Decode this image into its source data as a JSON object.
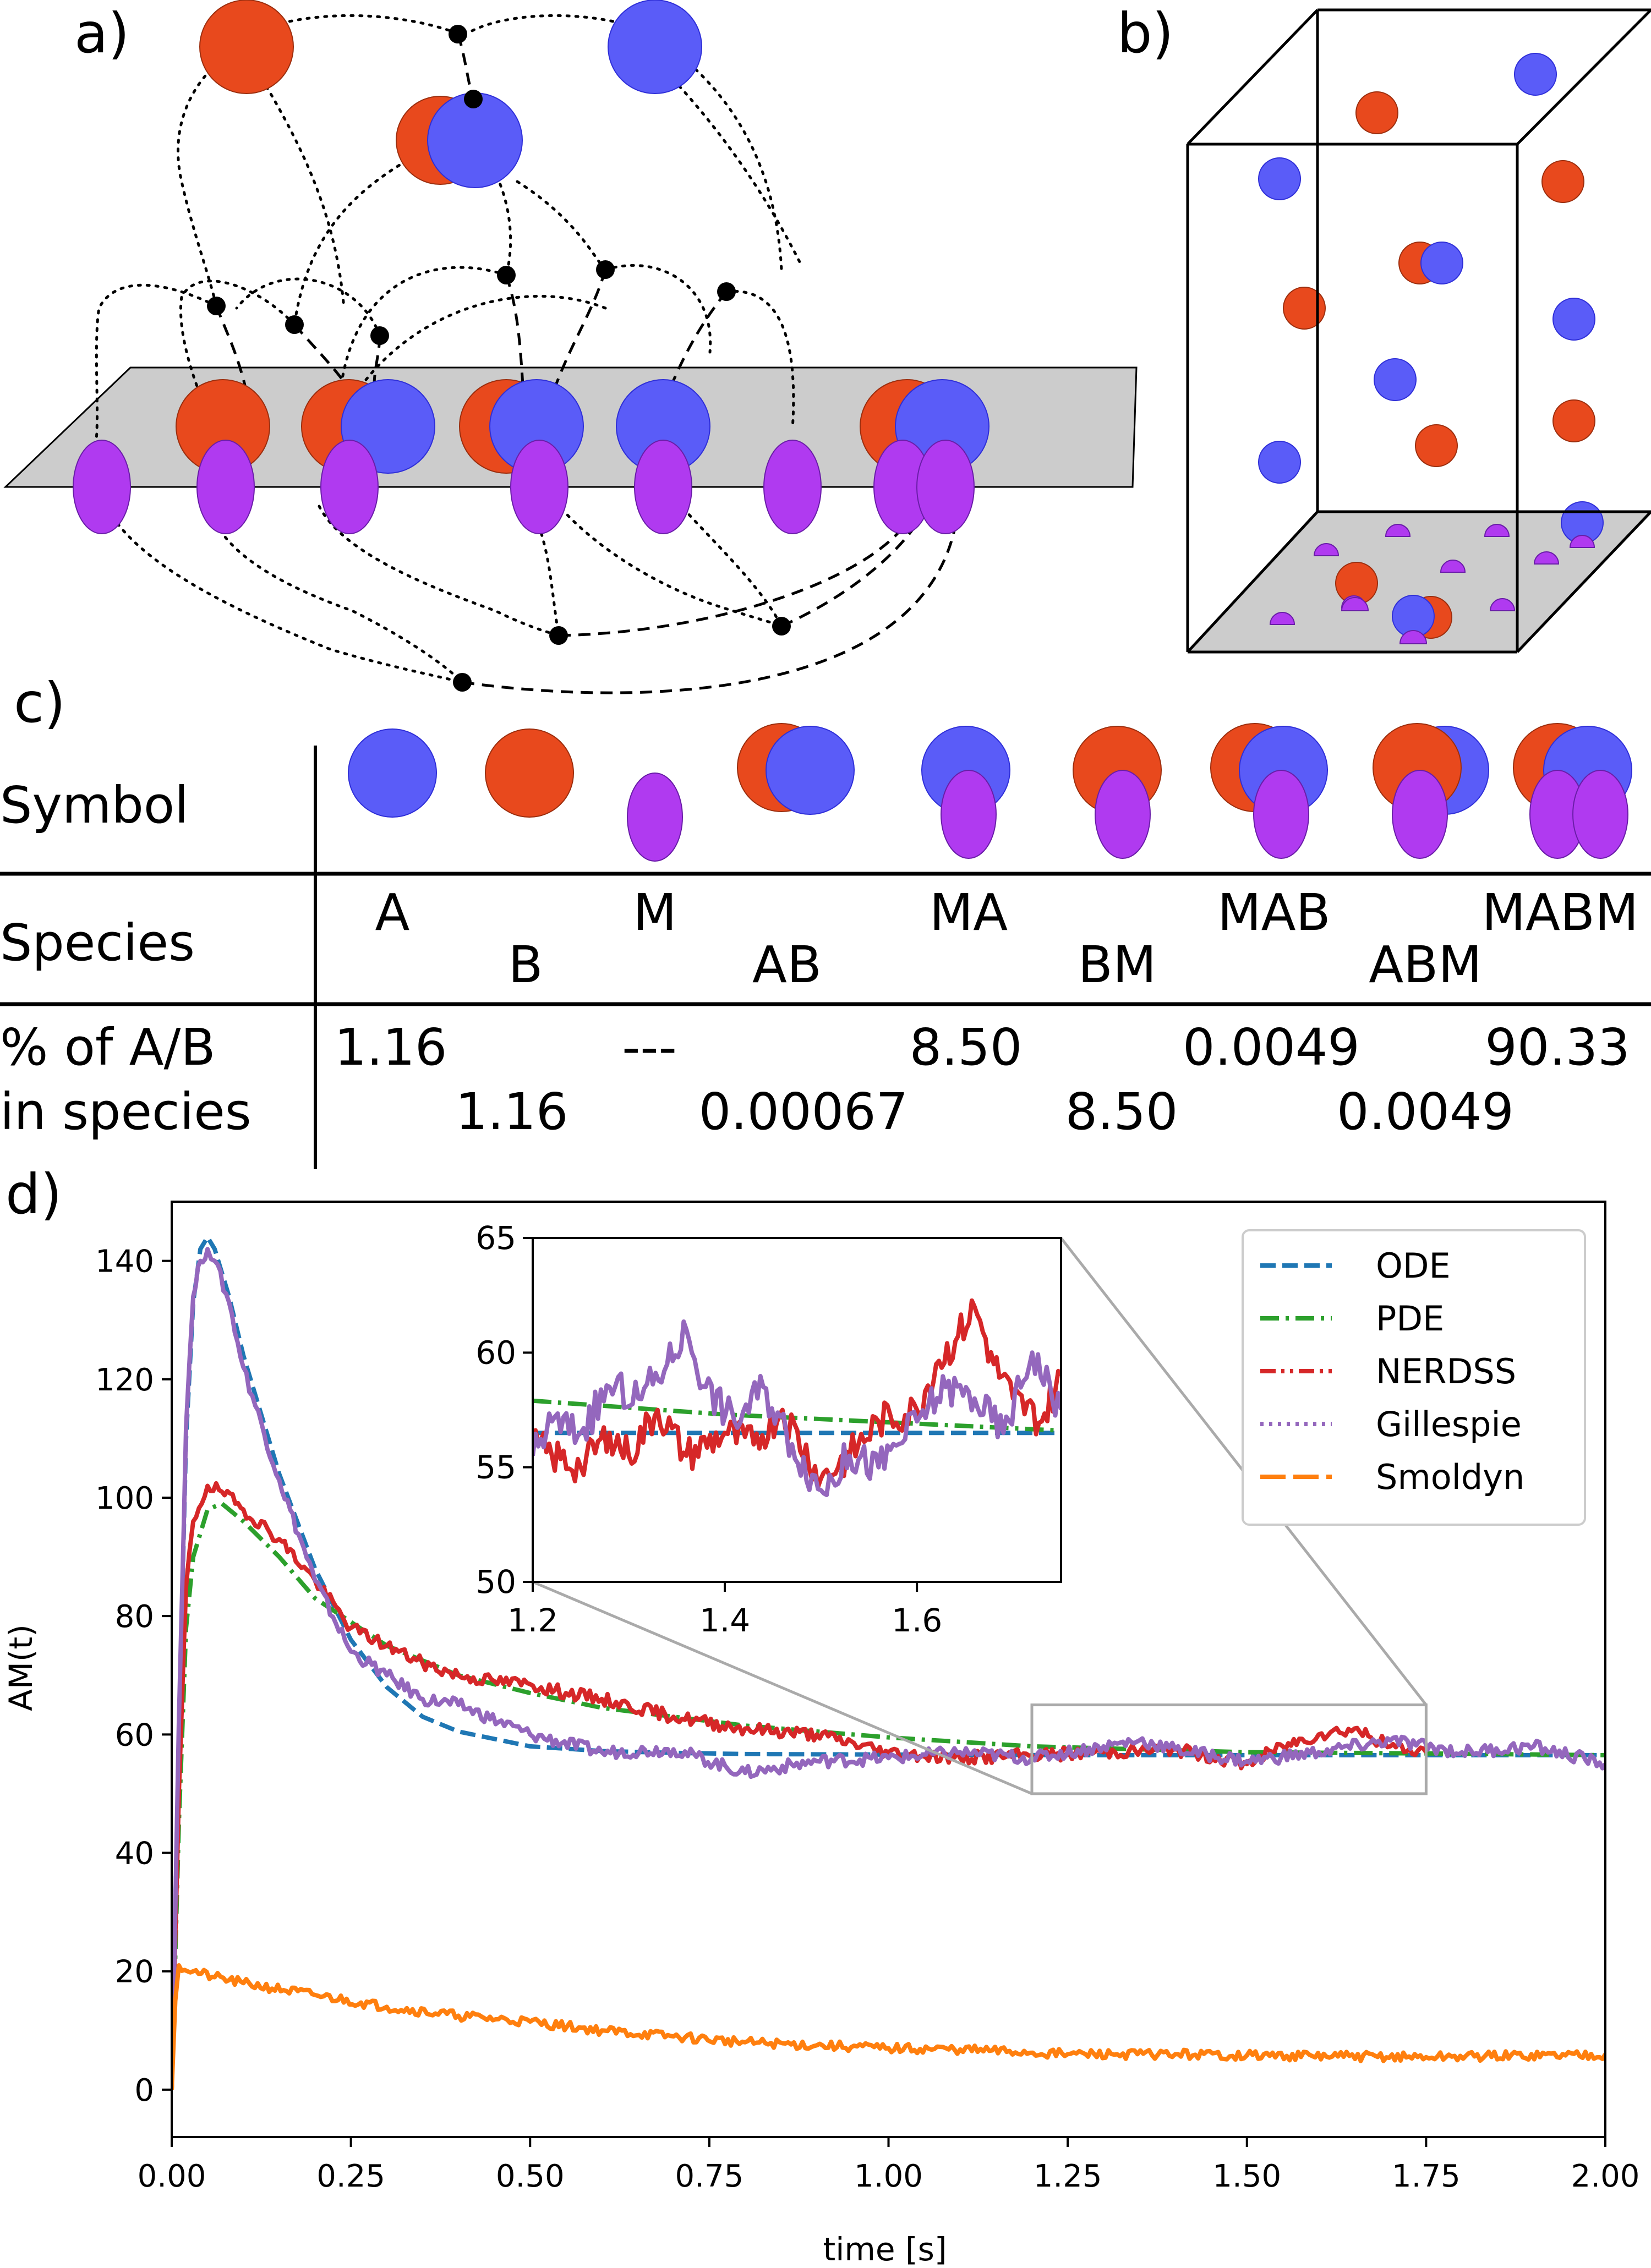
{
  "panel_labels": {
    "a": "a)",
    "b": "b)",
    "c": "c)",
    "d": "d)"
  },
  "colors": {
    "A": "#5a5cf8",
    "A_edge": "#2f2fd8",
    "B": "#e8491d",
    "B_edge": "#9c2e0e",
    "M": "#b03af0",
    "M_edge": "#6a1da8",
    "membrane": "#cccccc"
  },
  "table": {
    "row_headers": {
      "symbol": "Symbol",
      "species": "Species",
      "pct_line1": "% of A/B",
      "pct_line2": "in species"
    },
    "species": [
      {
        "name": "A",
        "pct": "1.16"
      },
      {
        "name": "B",
        "pct": "1.16"
      },
      {
        "name": "M",
        "pct": "---"
      },
      {
        "name": "AB",
        "pct": "0.00067"
      },
      {
        "name": "MA",
        "pct": "8.50"
      },
      {
        "name": "BM",
        "pct": "8.50"
      },
      {
        "name": "MAB",
        "pct": "0.0049"
      },
      {
        "name": "ABM",
        "pct": "0.0049"
      },
      {
        "name": "MABM",
        "pct": "90.33"
      }
    ]
  },
  "chart_data": [
    {
      "type": "line",
      "xlabel": "time [s]",
      "ylabel": "AM(t)",
      "xlim": [
        0,
        2
      ],
      "ylim": [
        -8,
        150
      ],
      "xticks": [
        "0.00",
        "0.25",
        "0.50",
        "0.75",
        "1.00",
        "1.25",
        "1.50",
        "1.75",
        "2.00"
      ],
      "yticks": [
        "0",
        "20",
        "40",
        "60",
        "80",
        "100",
        "120",
        "140"
      ],
      "grid": false,
      "legend": "top-right",
      "series": [
        {
          "name": "ODE",
          "color": "#1f77b4",
          "dash": "dashed",
          "x": [
            0,
            0.01,
            0.02,
            0.03,
            0.04,
            0.05,
            0.06,
            0.08,
            0.1,
            0.15,
            0.2,
            0.25,
            0.3,
            0.35,
            0.4,
            0.5,
            0.6,
            0.7,
            0.8,
            1.0,
            1.25,
            1.5,
            2.0
          ],
          "y": [
            0,
            60,
            110,
            133,
            142,
            144,
            142,
            134,
            124,
            104,
            88,
            76,
            68,
            63,
            60.5,
            58,
            57.2,
            56.9,
            56.7,
            56.6,
            56.5,
            56.5,
            56.5
          ]
        },
        {
          "name": "PDE",
          "color": "#2ca02c",
          "dash": "dashdot",
          "x": [
            0,
            0.01,
            0.02,
            0.03,
            0.05,
            0.07,
            0.1,
            0.15,
            0.2,
            0.3,
            0.4,
            0.5,
            0.6,
            0.8,
            1.0,
            1.2,
            1.5,
            1.75,
            2.0
          ],
          "y": [
            0,
            45,
            78,
            90,
            98,
            99,
            96,
            90,
            83,
            75,
            70,
            67,
            64.5,
            61.5,
            59.5,
            58,
            57,
            56.8,
            56.5
          ]
        },
        {
          "name": "NERDSS",
          "color": "#d62728",
          "dash": "dashdotdot",
          "x": [
            0,
            0.01,
            0.02,
            0.03,
            0.05,
            0.07,
            0.1,
            0.15,
            0.2,
            0.25,
            0.3,
            0.35,
            0.4,
            0.45,
            0.5,
            0.55,
            0.6,
            0.7,
            0.8,
            0.9,
            1.0,
            1.1,
            1.2,
            1.3,
            1.4,
            1.5,
            1.55,
            1.6,
            1.65,
            1.7,
            1.75
          ],
          "y": [
            0,
            50,
            85,
            96,
            102,
            101,
            98,
            93,
            86,
            78,
            75,
            72,
            70,
            69,
            68.5,
            67,
            66,
            63,
            61,
            60,
            57,
            56,
            56.5,
            57,
            57.5,
            55,
            58,
            60,
            61,
            58,
            57
          ]
        },
        {
          "name": "Gillespie",
          "color": "#9467bd",
          "dash": "dotted",
          "x": [
            0,
            0.01,
            0.02,
            0.03,
            0.04,
            0.05,
            0.06,
            0.08,
            0.1,
            0.15,
            0.2,
            0.25,
            0.3,
            0.35,
            0.4,
            0.5,
            0.6,
            0.7,
            0.8,
            0.9,
            1.0,
            1.1,
            1.2,
            1.3,
            1.35,
            1.4,
            1.5,
            1.6,
            1.7,
            1.8,
            1.9,
            2.0
          ],
          "y": [
            0,
            62,
            112,
            134,
            140,
            142,
            140,
            133,
            122,
            103,
            86,
            74,
            70,
            66,
            65,
            60,
            57,
            57.5,
            53.5,
            55.5,
            56,
            57,
            56,
            58,
            59,
            57.5,
            55.5,
            57,
            59,
            57,
            58,
            55
          ]
        },
        {
          "name": "Smoldyn",
          "color": "#ff7f0e",
          "dash": "longdash",
          "x": [
            0,
            0.005,
            0.01,
            0.03,
            0.06,
            0.1,
            0.2,
            0.3,
            0.4,
            0.5,
            0.6,
            0.7,
            0.8,
            0.9,
            1.0,
            1.1,
            1.25,
            1.4,
            1.5,
            1.75,
            2.0
          ],
          "y": [
            0,
            15,
            21,
            20,
            19,
            18,
            16,
            14,
            12.5,
            11.5,
            10,
            9,
            8,
            7.5,
            7,
            6.8,
            6,
            6,
            5.8,
            5.5,
            6
          ]
        }
      ]
    },
    {
      "type": "line",
      "xlim": [
        1.2,
        1.75
      ],
      "ylim": [
        50,
        65
      ],
      "xticks": [
        "1.2",
        "1.4",
        "1.6"
      ],
      "yticks": [
        "50",
        "55",
        "60",
        "65"
      ],
      "grid": false,
      "series": [
        {
          "name": "ODE",
          "x": [
            1.2,
            1.75
          ],
          "y": [
            56.5,
            56.5
          ]
        },
        {
          "name": "PDE",
          "x": [
            1.2,
            1.4,
            1.6,
            1.75
          ],
          "y": [
            57.9,
            57.3,
            56.9,
            56.6
          ]
        },
        {
          "name": "NERDSS",
          "x": [
            1.2,
            1.22,
            1.25,
            1.28,
            1.3,
            1.33,
            1.36,
            1.4,
            1.43,
            1.46,
            1.5,
            1.53,
            1.56,
            1.6,
            1.62,
            1.64,
            1.66,
            1.68,
            1.7,
            1.73,
            1.75
          ],
          "y": [
            56.0,
            55.5,
            55.0,
            56.5,
            55.5,
            57.5,
            55.5,
            56.5,
            56.0,
            57.5,
            54.5,
            55.5,
            57.0,
            57.5,
            59.5,
            60.5,
            62.0,
            59.5,
            58.0,
            57.0,
            59.0
          ]
        },
        {
          "name": "Gillespie",
          "x": [
            1.2,
            1.22,
            1.25,
            1.28,
            1.31,
            1.34,
            1.36,
            1.38,
            1.41,
            1.44,
            1.47,
            1.5,
            1.53,
            1.56,
            1.6,
            1.63,
            1.66,
            1.69,
            1.72,
            1.75
          ],
          "y": [
            55.5,
            57.0,
            56.5,
            58.5,
            58.0,
            59.5,
            61.0,
            58.5,
            57.0,
            58.5,
            56.0,
            54.0,
            55.5,
            55.0,
            57.0,
            58.5,
            58.0,
            56.5,
            60.0,
            57.5
          ]
        }
      ]
    }
  ]
}
